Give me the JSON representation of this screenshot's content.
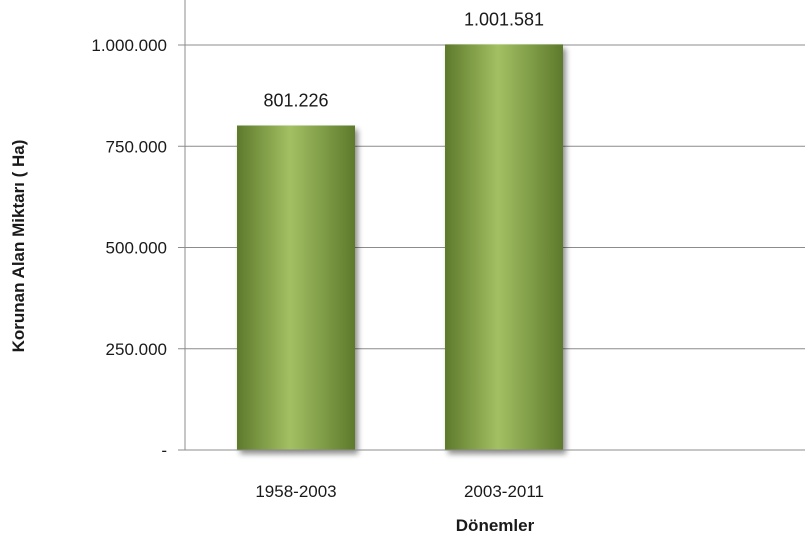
{
  "chart_data": {
    "type": "bar",
    "categories": [
      "1958-2003",
      "2003-2011"
    ],
    "values": [
      801226,
      1001581
    ],
    "value_labels": [
      "801.226",
      "1.001.581"
    ],
    "xlabel": "Dönemler",
    "ylabel": "Korunan Alan Miktarı ( Ha)",
    "ylim": [
      0,
      1000000
    ],
    "yticks": [
      0,
      250000,
      500000,
      750000,
      1000000
    ],
    "ytick_labels": [
      "-",
      "250.000",
      "500.000",
      "750.000",
      "1.000.000"
    ],
    "grid": true,
    "legend": "none",
    "colors": {
      "bar": "#7f9f45",
      "bar_highlight": "#a3c063",
      "bar_shadow": "#5d7a2c",
      "grid": "#8c8c8c"
    }
  }
}
